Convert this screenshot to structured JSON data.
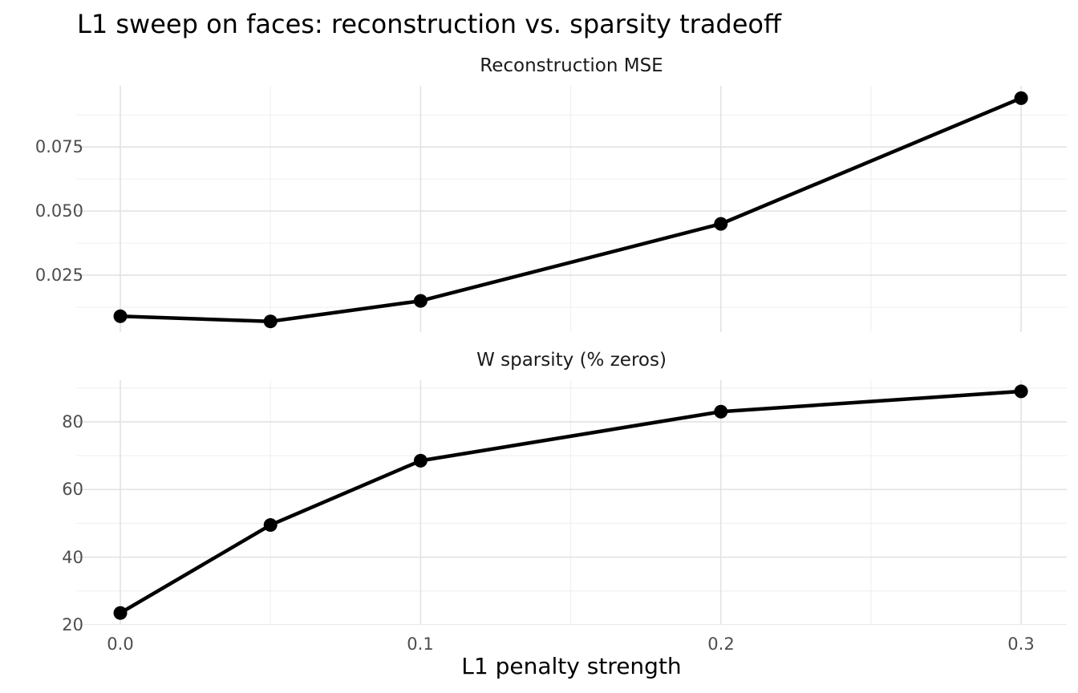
{
  "title": "L1 sweep on faces: reconstruction vs. sparsity tradeoff",
  "x_axis": {
    "label": "L1 penalty strength",
    "ticks": [
      0.0,
      0.1,
      0.2,
      0.3
    ],
    "tick_labels": [
      "0.0",
      "0.1",
      "0.2",
      "0.3"
    ],
    "minor_ticks": [
      0.05,
      0.15,
      0.25
    ],
    "xlim": [
      -0.0147,
      0.3152
    ]
  },
  "chart_data": [
    {
      "type": "line",
      "title": "Reconstruction MSE",
      "x": [
        0.0,
        0.05,
        0.1,
        0.2,
        0.3
      ],
      "values": [
        0.009,
        0.007,
        0.015,
        0.045,
        0.094
      ],
      "yticks": [
        0.025,
        0.05,
        0.075
      ],
      "ytick_labels": [
        "0.025",
        "0.050",
        "0.075"
      ],
      "minor_yticks": [
        0.0125,
        0.0375,
        0.0625,
        0.0875
      ],
      "ylim": [
        0.00284,
        0.0988
      ],
      "grid": true,
      "legend": "none"
    },
    {
      "type": "line",
      "title": "W sparsity (% zeros)",
      "x": [
        0.0,
        0.05,
        0.1,
        0.2,
        0.3
      ],
      "values": [
        23.5,
        49.5,
        68.5,
        83,
        89
      ],
      "yticks": [
        20,
        40,
        60,
        80
      ],
      "ytick_labels": [
        "20",
        "40",
        "60",
        "80"
      ],
      "minor_yticks": [
        30,
        50,
        70,
        90
      ],
      "ylim": [
        20.0,
        92.3
      ],
      "grid": true,
      "legend": "none"
    }
  ],
  "style": {
    "line_color": "#000000",
    "point_color": "#000000",
    "grid_major_color": "#e2e2e2",
    "grid_minor_color": "#f0f0f0",
    "tick_text_color": "#4d4d4d",
    "title_color": "#000000",
    "strip_text_color": "#1a1a1a"
  }
}
